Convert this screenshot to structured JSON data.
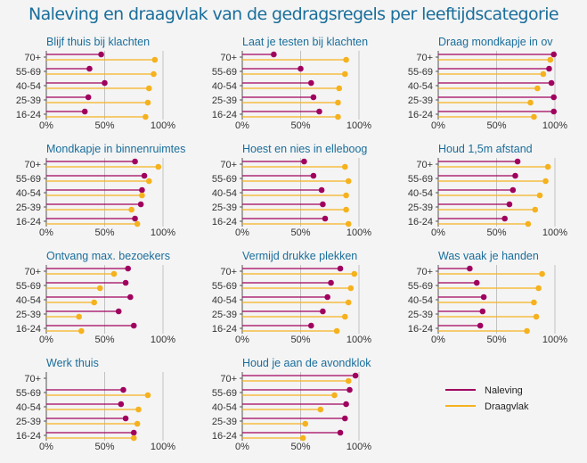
{
  "chart_data": {
    "type": "lollipop-small-multiples",
    "title": "Naleving en draagvlak van de gedragsregels per leeftijdscategorie",
    "categories": [
      "70+",
      "55-69",
      "40-54",
      "25-39",
      "16-24"
    ],
    "x_ticks": [
      "0%",
      "50%",
      "100%"
    ],
    "xlim": [
      0,
      100
    ],
    "grid": "vertical at 50% and 100%",
    "legend": {
      "position": "bottom-right",
      "entries": [
        {
          "name": "Naleving",
          "color": "#a0005e"
        },
        {
          "name": "Draagvlak",
          "color": "#f5b21e"
        }
      ]
    },
    "panels": [
      {
        "title": "Blijf thuis bij klachten",
        "series": [
          {
            "name": "Naleving",
            "values": [
              47,
              37,
              50,
              36,
              33
            ]
          },
          {
            "name": "Draagvlak",
            "values": [
              93,
              92,
              88,
              87,
              85
            ]
          }
        ]
      },
      {
        "title": "Laat je testen bij klachten",
        "series": [
          {
            "name": "Naleving",
            "values": [
              27,
              50,
              59,
              61,
              66
            ]
          },
          {
            "name": "Draagvlak",
            "values": [
              89,
              88,
              83,
              82,
              82
            ]
          }
        ]
      },
      {
        "title": "Draag mondkapje in ov",
        "series": [
          {
            "name": "Naleving",
            "values": [
              99,
              95,
              97,
              99,
              99
            ]
          },
          {
            "name": "Draagvlak",
            "values": [
              96,
              90,
              85,
              79,
              82
            ]
          }
        ]
      },
      {
        "title": "Mondkapje in binnenruimtes",
        "series": [
          {
            "name": "Naleving",
            "values": [
              76,
              84,
              82,
              81,
              76
            ]
          },
          {
            "name": "Draagvlak",
            "values": [
              96,
              88,
              82,
              73,
              78
            ]
          }
        ]
      },
      {
        "title": "Hoest en nies in elleboog",
        "series": [
          {
            "name": "Naleving",
            "values": [
              53,
              61,
              68,
              69,
              71
            ]
          },
          {
            "name": "Draagvlak",
            "values": [
              88,
              91,
              89,
              89,
              91
            ]
          }
        ]
      },
      {
        "title": "Houd 1,5m afstand",
        "series": [
          {
            "name": "Naleving",
            "values": [
              68,
              66,
              64,
              61,
              57
            ]
          },
          {
            "name": "Draagvlak",
            "values": [
              94,
              92,
              87,
              83,
              77
            ]
          }
        ]
      },
      {
        "title": "Ontvang max. bezoekers",
        "series": [
          {
            "name": "Naleving",
            "values": [
              70,
              68,
              72,
              62,
              75
            ]
          },
          {
            "name": "Draagvlak",
            "values": [
              58,
              46,
              41,
              28,
              30
            ]
          }
        ]
      },
      {
        "title": "Vermijd drukke plekken",
        "series": [
          {
            "name": "Naleving",
            "values": [
              84,
              76,
              73,
              69,
              59
            ]
          },
          {
            "name": "Draagvlak",
            "values": [
              96,
              93,
              91,
              88,
              81
            ]
          }
        ]
      },
      {
        "title": "Was vaak je handen",
        "series": [
          {
            "name": "Naleving",
            "values": [
              27,
              33,
              39,
              38,
              36
            ]
          },
          {
            "name": "Draagvlak",
            "values": [
              89,
              86,
              82,
              84,
              76
            ]
          }
        ]
      },
      {
        "title": "Werk thuis",
        "series": [
          {
            "name": "Naleving",
            "values": [
              null,
              66,
              64,
              68,
              75
            ]
          },
          {
            "name": "Draagvlak",
            "values": [
              null,
              87,
              79,
              78,
              75
            ]
          }
        ]
      },
      {
        "title": "Houd je aan de avondklok",
        "series": [
          {
            "name": "Naleving",
            "values": [
              97,
              92,
              89,
              88,
              84
            ]
          },
          {
            "name": "Draagvlak",
            "values": [
              91,
              79,
              67,
              54,
              52
            ]
          }
        ]
      }
    ]
  }
}
